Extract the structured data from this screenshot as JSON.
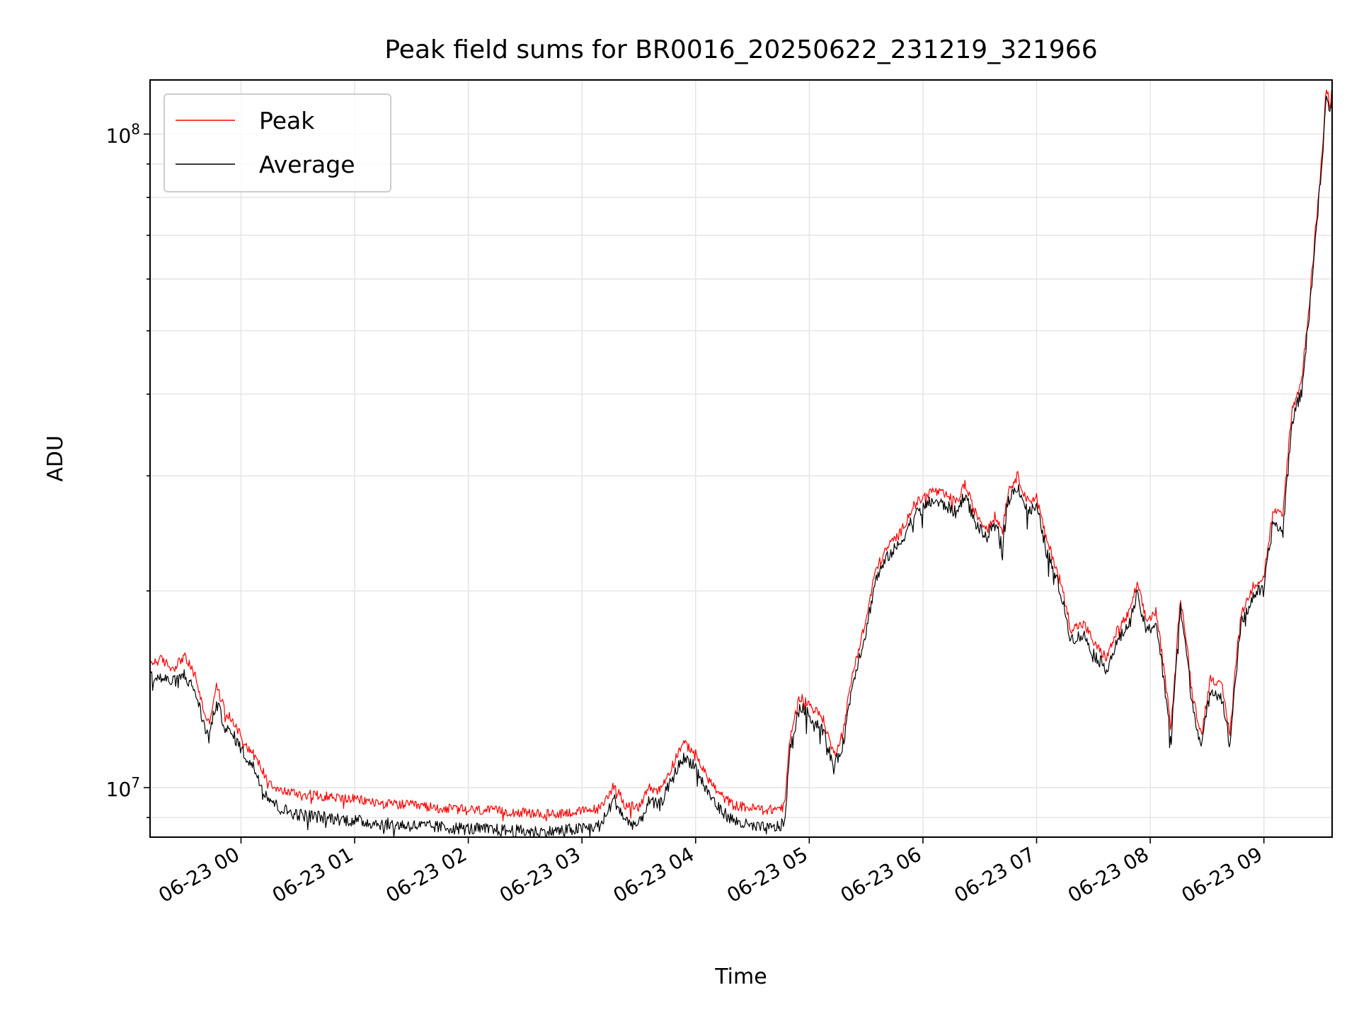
{
  "chart_data": {
    "type": "line",
    "title": "Peak field sums for BR0016_20250622_231219_321966",
    "xlabel": "Time",
    "ylabel": "ADU",
    "yscale": "log",
    "xlim": [
      "2025-06-22 23:12",
      "2025-06-23 09:36"
    ],
    "ylim": [
      8400000,
      121000000
    ],
    "x_tick_labels": [
      "06-23 00",
      "06-23 01",
      "06-23 02",
      "06-23 03",
      "06-23 04",
      "06-23 05",
      "06-23 06",
      "06-23 07",
      "06-23 08",
      "06-23 09"
    ],
    "y_tick_labels": [
      {
        "value": 10000000,
        "base": "10",
        "exp": "7"
      },
      {
        "value": 100000000,
        "base": "10",
        "exp": "8"
      }
    ],
    "grid": true,
    "legend_position": "top-left",
    "series": [
      {
        "name": "Peak",
        "color": "#ff0000",
        "points": [
          [
            "2025-06-22 23:12",
            15500000
          ],
          [
            "2025-06-22 23:18",
            15700000
          ],
          [
            "2025-06-22 23:24",
            15200000
          ],
          [
            "2025-06-22 23:30",
            15900000
          ],
          [
            "2025-06-22 23:36",
            14800000
          ],
          [
            "2025-06-22 23:40",
            13200000
          ],
          [
            "2025-06-22 23:43",
            12500000
          ],
          [
            "2025-06-22 23:47",
            14300000
          ],
          [
            "2025-06-22 23:52",
            13000000
          ],
          [
            "2025-06-22 23:57",
            12500000
          ],
          [
            "2025-06-23 00:02",
            11700000
          ],
          [
            "2025-06-23 00:07",
            11200000
          ],
          [
            "2025-06-23 00:13",
            10400000
          ],
          [
            "2025-06-23 00:20",
            9900000
          ],
          [
            "2025-06-23 00:30",
            9800000
          ],
          [
            "2025-06-23 00:45",
            9700000
          ],
          [
            "2025-06-23 01:00",
            9600000
          ],
          [
            "2025-06-23 01:15",
            9450000
          ],
          [
            "2025-06-23 01:30",
            9400000
          ],
          [
            "2025-06-23 01:45",
            9300000
          ],
          [
            "2025-06-23 02:00",
            9250000
          ],
          [
            "2025-06-23 02:20",
            9200000
          ],
          [
            "2025-06-23 02:40",
            9100000
          ],
          [
            "2025-06-23 03:00",
            9200000
          ],
          [
            "2025-06-23 03:10",
            9300000
          ],
          [
            "2025-06-23 03:17",
            10100000
          ],
          [
            "2025-06-23 03:23",
            9400000
          ],
          [
            "2025-06-23 03:30",
            9300000
          ],
          [
            "2025-06-23 03:35",
            10000000
          ],
          [
            "2025-06-23 03:41",
            9900000
          ],
          [
            "2025-06-23 03:47",
            10700000
          ],
          [
            "2025-06-23 03:53",
            11700000
          ],
          [
            "2025-06-23 03:59",
            11400000
          ],
          [
            "2025-06-23 04:05",
            10500000
          ],
          [
            "2025-06-23 04:12",
            9800000
          ],
          [
            "2025-06-23 04:20",
            9400000
          ],
          [
            "2025-06-23 04:30",
            9300000
          ],
          [
            "2025-06-23 04:40",
            9250000
          ],
          [
            "2025-06-23 04:47",
            9350000
          ],
          [
            "2025-06-23 04:50",
            12000000
          ],
          [
            "2025-06-23 04:55",
            13800000
          ],
          [
            "2025-06-23 05:00",
            13400000
          ],
          [
            "2025-06-23 05:07",
            12800000
          ],
          [
            "2025-06-23 05:13",
            11200000
          ],
          [
            "2025-06-23 05:18",
            12200000
          ],
          [
            "2025-06-23 05:23",
            15000000
          ],
          [
            "2025-06-23 05:30",
            18000000
          ],
          [
            "2025-06-23 05:35",
            21500000
          ],
          [
            "2025-06-23 05:42",
            23500000
          ],
          [
            "2025-06-23 05:48",
            24500000
          ],
          [
            "2025-06-23 05:55",
            27000000
          ],
          [
            "2025-06-23 06:05",
            28500000
          ],
          [
            "2025-06-23 06:12",
            28000000
          ],
          [
            "2025-06-23 06:18",
            27300000
          ],
          [
            "2025-06-23 06:22",
            29200000
          ],
          [
            "2025-06-23 06:27",
            26500000
          ],
          [
            "2025-06-23 06:33",
            25000000
          ],
          [
            "2025-06-23 06:38",
            26000000
          ],
          [
            "2025-06-23 06:42",
            24800000
          ],
          [
            "2025-06-23 06:45",
            28500000
          ],
          [
            "2025-06-23 06:50",
            30000000
          ],
          [
            "2025-06-23 06:55",
            27500000
          ],
          [
            "2025-06-23 07:00",
            27800000
          ],
          [
            "2025-06-23 07:05",
            24000000
          ],
          [
            "2025-06-23 07:12",
            21000000
          ],
          [
            "2025-06-23 07:18",
            17500000
          ],
          [
            "2025-06-23 07:25",
            17800000
          ],
          [
            "2025-06-23 07:31",
            16500000
          ],
          [
            "2025-06-23 07:37",
            15800000
          ],
          [
            "2025-06-23 07:43",
            17500000
          ],
          [
            "2025-06-23 07:49",
            18500000
          ],
          [
            "2025-06-23 07:53",
            20500000
          ],
          [
            "2025-06-23 07:58",
            18000000
          ],
          [
            "2025-06-23 08:03",
            18600000
          ],
          [
            "2025-06-23 08:08",
            14500000
          ],
          [
            "2025-06-23 08:11",
            12200000
          ],
          [
            "2025-06-23 08:16",
            19500000
          ],
          [
            "2025-06-23 08:22",
            14000000
          ],
          [
            "2025-06-23 08:27",
            12000000
          ],
          [
            "2025-06-23 08:32",
            14800000
          ],
          [
            "2025-06-23 08:38",
            14200000
          ],
          [
            "2025-06-23 08:42",
            12000000
          ],
          [
            "2025-06-23 08:48",
            18500000
          ],
          [
            "2025-06-23 08:55",
            20500000
          ],
          [
            "2025-06-23 09:00",
            21000000
          ],
          [
            "2025-06-23 09:05",
            26500000
          ],
          [
            "2025-06-23 09:10",
            26000000
          ],
          [
            "2025-06-23 09:15",
            38000000
          ],
          [
            "2025-06-23 09:20",
            42000000
          ],
          [
            "2025-06-23 09:24",
            55000000
          ],
          [
            "2025-06-23 09:28",
            75000000
          ],
          [
            "2025-06-23 09:31",
            95000000
          ],
          [
            "2025-06-23 09:33",
            118000000
          ],
          [
            "2025-06-23 09:35",
            110000000
          ],
          [
            "2025-06-23 09:36",
            120000000
          ]
        ]
      },
      {
        "name": "Average",
        "color": "#000000",
        "points": [
          [
            "2025-06-22 23:12",
            14800000
          ],
          [
            "2025-06-22 23:18",
            14700000
          ],
          [
            "2025-06-22 23:24",
            14500000
          ],
          [
            "2025-06-22 23:30",
            14900000
          ],
          [
            "2025-06-22 23:36",
            14000000
          ],
          [
            "2025-06-22 23:40",
            12600000
          ],
          [
            "2025-06-22 23:43",
            11900000
          ],
          [
            "2025-06-22 23:47",
            13500000
          ],
          [
            "2025-06-22 23:52",
            12300000
          ],
          [
            "2025-06-22 23:57",
            11900000
          ],
          [
            "2025-06-23 00:02",
            11200000
          ],
          [
            "2025-06-23 00:07",
            10700000
          ],
          [
            "2025-06-23 00:13",
            9800000
          ],
          [
            "2025-06-23 00:20",
            9300000
          ],
          [
            "2025-06-23 00:30",
            9100000
          ],
          [
            "2025-06-23 00:45",
            9000000
          ],
          [
            "2025-06-23 01:00",
            8900000
          ],
          [
            "2025-06-23 01:15",
            8800000
          ],
          [
            "2025-06-23 01:30",
            8750000
          ],
          [
            "2025-06-23 01:45",
            8700000
          ],
          [
            "2025-06-23 02:00",
            8650000
          ],
          [
            "2025-06-23 02:20",
            8600000
          ],
          [
            "2025-06-23 02:40",
            8550000
          ],
          [
            "2025-06-23 03:00",
            8650000
          ],
          [
            "2025-06-23 03:10",
            8750000
          ],
          [
            "2025-06-23 03:17",
            9600000
          ],
          [
            "2025-06-23 03:23",
            8900000
          ],
          [
            "2025-06-23 03:30",
            8750000
          ],
          [
            "2025-06-23 03:35",
            9500000
          ],
          [
            "2025-06-23 03:41",
            9400000
          ],
          [
            "2025-06-23 03:47",
            10200000
          ],
          [
            "2025-06-23 03:53",
            11100000
          ],
          [
            "2025-06-23 03:59",
            10900000
          ],
          [
            "2025-06-23 04:05",
            10000000
          ],
          [
            "2025-06-23 04:12",
            9300000
          ],
          [
            "2025-06-23 04:20",
            8900000
          ],
          [
            "2025-06-23 04:30",
            8700000
          ],
          [
            "2025-06-23 04:40",
            8650000
          ],
          [
            "2025-06-23 04:47",
            8800000
          ],
          [
            "2025-06-23 04:50",
            11500000
          ],
          [
            "2025-06-23 04:55",
            13300000
          ],
          [
            "2025-06-23 05:00",
            12900000
          ],
          [
            "2025-06-23 05:07",
            12300000
          ],
          [
            "2025-06-23 05:13",
            10700000
          ],
          [
            "2025-06-23 05:18",
            11700000
          ],
          [
            "2025-06-23 05:23",
            14500000
          ],
          [
            "2025-06-23 05:30",
            17300000
          ],
          [
            "2025-06-23 05:35",
            20800000
          ],
          [
            "2025-06-23 05:42",
            22700000
          ],
          [
            "2025-06-23 05:48",
            23600000
          ],
          [
            "2025-06-23 05:55",
            26000000
          ],
          [
            "2025-06-23 06:05",
            27500000
          ],
          [
            "2025-06-23 06:12",
            27000000
          ],
          [
            "2025-06-23 06:18",
            26300000
          ],
          [
            "2025-06-23 06:22",
            28200000
          ],
          [
            "2025-06-23 06:27",
            25600000
          ],
          [
            "2025-06-23 06:33",
            24100000
          ],
          [
            "2025-06-23 06:38",
            25100000
          ],
          [
            "2025-06-23 06:42",
            23900000
          ],
          [
            "2025-06-23 06:45",
            27500000
          ],
          [
            "2025-06-23 06:50",
            29000000
          ],
          [
            "2025-06-23 06:55",
            26500000
          ],
          [
            "2025-06-23 07:00",
            26800000
          ],
          [
            "2025-06-23 07:05",
            23100000
          ],
          [
            "2025-06-23 07:12",
            20200000
          ],
          [
            "2025-06-23 07:18",
            16900000
          ],
          [
            "2025-06-23 07:25",
            17100000
          ],
          [
            "2025-06-23 07:31",
            15900000
          ],
          [
            "2025-06-23 07:37",
            15200000
          ],
          [
            "2025-06-23 07:43",
            16800000
          ],
          [
            "2025-06-23 07:49",
            17800000
          ],
          [
            "2025-06-23 07:53",
            19700000
          ],
          [
            "2025-06-23 07:58",
            17300000
          ],
          [
            "2025-06-23 08:03",
            17900000
          ],
          [
            "2025-06-23 08:08",
            13900000
          ],
          [
            "2025-06-23 08:11",
            11700000
          ],
          [
            "2025-06-23 08:16",
            18800000
          ],
          [
            "2025-06-23 08:22",
            13500000
          ],
          [
            "2025-06-23 08:27",
            11500000
          ],
          [
            "2025-06-23 08:32",
            14200000
          ],
          [
            "2025-06-23 08:38",
            13700000
          ],
          [
            "2025-06-23 08:42",
            11500000
          ],
          [
            "2025-06-23 08:48",
            17800000
          ],
          [
            "2025-06-23 08:55",
            19800000
          ],
          [
            "2025-06-23 09:00",
            20200000
          ],
          [
            "2025-06-23 09:05",
            25500000
          ],
          [
            "2025-06-23 09:10",
            24500000
          ],
          [
            "2025-06-23 09:15",
            36500000
          ],
          [
            "2025-06-23 09:20",
            40500000
          ],
          [
            "2025-06-23 09:24",
            53000000
          ],
          [
            "2025-06-23 09:28",
            73000000
          ],
          [
            "2025-06-23 09:31",
            92000000
          ],
          [
            "2025-06-23 09:33",
            115000000
          ],
          [
            "2025-06-23 09:35",
            106000000
          ],
          [
            "2025-06-23 09:36",
            117000000
          ]
        ]
      }
    ]
  }
}
